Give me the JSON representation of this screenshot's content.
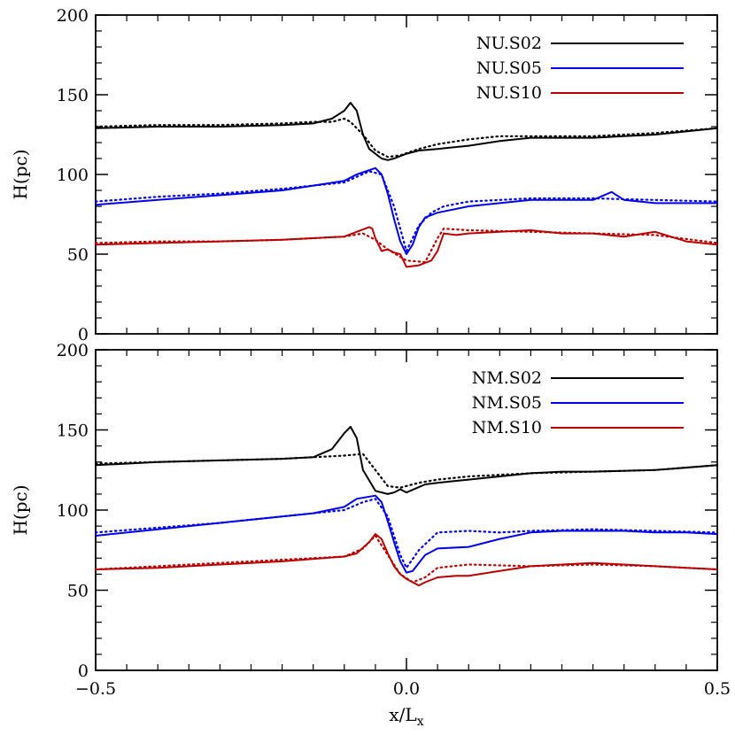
{
  "chart_data": [
    {
      "type": "line",
      "panel": "top",
      "title": "",
      "xlabel": "",
      "ylabel": "H(pc)",
      "xlim": [
        -0.5,
        0.5
      ],
      "ylim": [
        0,
        200
      ],
      "yticks": [
        0,
        50,
        100,
        150,
        200
      ],
      "xticks": [
        -0.5,
        0.0,
        0.5
      ],
      "show_x_tick_labels": false,
      "legend_position": "top-right",
      "series": [
        {
          "name": "NU.S02",
          "color": "#000000",
          "style": "solid",
          "x": [
            -0.5,
            -0.4,
            -0.3,
            -0.2,
            -0.15,
            -0.12,
            -0.1,
            -0.09,
            -0.08,
            -0.07,
            -0.06,
            -0.04,
            -0.03,
            -0.02,
            0.0,
            0.02,
            0.05,
            0.1,
            0.15,
            0.2,
            0.25,
            0.3,
            0.35,
            0.4,
            0.45,
            0.5
          ],
          "y": [
            129,
            130,
            130,
            131,
            132,
            135,
            140,
            145,
            140,
            125,
            116,
            110,
            109,
            110,
            113,
            115,
            116,
            118,
            121,
            123,
            123,
            123,
            124,
            125,
            127,
            129
          ]
        },
        {
          "name": "",
          "color": "#000000",
          "style": "dotted",
          "x": [
            -0.5,
            -0.4,
            -0.3,
            -0.2,
            -0.15,
            -0.12,
            -0.1,
            -0.09,
            -0.07,
            -0.05,
            -0.03,
            -0.01,
            0.02,
            0.05,
            0.1,
            0.15,
            0.2,
            0.3,
            0.4,
            0.5
          ],
          "y": [
            130,
            131,
            131,
            132,
            133,
            133,
            135,
            133,
            125,
            115,
            111,
            112,
            116,
            119,
            122,
            124,
            124,
            124,
            126,
            129
          ]
        },
        {
          "name": "NU.S05",
          "color": "#0000ee",
          "style": "solid",
          "x": [
            -0.5,
            -0.4,
            -0.3,
            -0.2,
            -0.15,
            -0.1,
            -0.08,
            -0.05,
            -0.04,
            -0.03,
            -0.02,
            -0.01,
            0.0,
            0.01,
            0.02,
            0.03,
            0.05,
            0.1,
            0.15,
            0.2,
            0.25,
            0.3,
            0.33,
            0.35,
            0.4,
            0.45,
            0.5
          ],
          "y": [
            81,
            84,
            87,
            90,
            93,
            96,
            100,
            104,
            100,
            88,
            72,
            58,
            50,
            56,
            67,
            73,
            76,
            80,
            82,
            84,
            84,
            84,
            89,
            84,
            82,
            82,
            82
          ]
        },
        {
          "name": "",
          "color": "#0000ee",
          "style": "dotted",
          "x": [
            -0.5,
            -0.4,
            -0.3,
            -0.2,
            -0.1,
            -0.06,
            -0.04,
            -0.02,
            0.0,
            0.02,
            0.04,
            0.06,
            0.1,
            0.2,
            0.3,
            0.4,
            0.5
          ],
          "y": [
            83,
            86,
            88,
            91,
            95,
            102,
            100,
            80,
            52,
            68,
            76,
            80,
            83,
            85,
            85,
            84,
            83
          ]
        },
        {
          "name": "NU.S10",
          "color": "#bb0000",
          "style": "solid",
          "x": [
            -0.5,
            -0.4,
            -0.3,
            -0.2,
            -0.1,
            -0.08,
            -0.06,
            -0.055,
            -0.05,
            -0.04,
            -0.03,
            -0.02,
            -0.01,
            0.0,
            0.02,
            0.04,
            0.05,
            0.06,
            0.08,
            0.1,
            0.15,
            0.2,
            0.25,
            0.3,
            0.35,
            0.4,
            0.45,
            0.5
          ],
          "y": [
            56,
            57,
            58,
            59,
            61,
            64,
            67,
            66,
            60,
            52,
            53,
            51,
            50,
            42,
            43,
            46,
            52,
            63,
            62,
            63,
            64,
            65,
            63,
            63,
            61,
            64,
            58,
            56
          ]
        },
        {
          "name": "",
          "color": "#bb0000",
          "style": "dotted",
          "x": [
            -0.5,
            -0.4,
            -0.3,
            -0.2,
            -0.1,
            -0.07,
            -0.05,
            -0.03,
            0.0,
            0.03,
            0.05,
            0.06,
            0.1,
            0.2,
            0.3,
            0.4,
            0.5
          ],
          "y": [
            57,
            58,
            58,
            59,
            61,
            63,
            59,
            53,
            46,
            45,
            60,
            66,
            65,
            64,
            63,
            62,
            57
          ]
        }
      ]
    },
    {
      "type": "line",
      "panel": "bottom",
      "title": "",
      "xlabel": "x/L",
      "xlabel_subscript": "x",
      "ylabel": "H(pc)",
      "xlim": [
        -0.5,
        0.5
      ],
      "ylim": [
        0,
        200
      ],
      "yticks": [
        0,
        50,
        100,
        150,
        200
      ],
      "xticks": [
        -0.5,
        0.0,
        0.5
      ],
      "x_tick_labels": [
        "−0.5",
        "0.0",
        "0.5"
      ],
      "legend_position": "top-right",
      "series": [
        {
          "name": "NM.S02",
          "color": "#000000",
          "style": "solid",
          "x": [
            -0.5,
            -0.4,
            -0.3,
            -0.2,
            -0.15,
            -0.12,
            -0.1,
            -0.09,
            -0.08,
            -0.07,
            -0.05,
            -0.03,
            -0.02,
            -0.01,
            0.0,
            0.03,
            0.05,
            0.1,
            0.15,
            0.2,
            0.25,
            0.3,
            0.4,
            0.5
          ],
          "y": [
            128,
            130,
            131,
            132,
            133,
            138,
            148,
            152,
            145,
            125,
            112,
            110,
            111,
            113,
            111,
            116,
            117,
            119,
            121,
            123,
            124,
            124,
            125,
            128
          ]
        },
        {
          "name": "",
          "color": "#000000",
          "style": "dotted",
          "x": [
            -0.5,
            -0.4,
            -0.3,
            -0.2,
            -0.1,
            -0.07,
            -0.05,
            -0.03,
            -0.01,
            0.02,
            0.05,
            0.1,
            0.15,
            0.2,
            0.3,
            0.4,
            0.5
          ],
          "y": [
            129,
            130,
            131,
            132,
            134,
            135,
            125,
            115,
            114,
            117,
            119,
            121,
            122,
            123,
            124,
            125,
            128
          ]
        },
        {
          "name": "NM.S05",
          "color": "#0000ee",
          "style": "solid",
          "x": [
            -0.5,
            -0.4,
            -0.3,
            -0.2,
            -0.15,
            -0.1,
            -0.08,
            -0.05,
            -0.04,
            -0.03,
            -0.02,
            -0.01,
            0.0,
            0.01,
            0.03,
            0.05,
            0.1,
            0.15,
            0.2,
            0.25,
            0.3,
            0.35,
            0.4,
            0.45,
            0.5
          ],
          "y": [
            84,
            88,
            92,
            96,
            98,
            102,
            107,
            109,
            105,
            93,
            80,
            68,
            61,
            62,
            72,
            76,
            77,
            82,
            86,
            87,
            87,
            87,
            86,
            86,
            85
          ]
        },
        {
          "name": "",
          "color": "#0000ee",
          "style": "dotted",
          "x": [
            -0.5,
            -0.4,
            -0.3,
            -0.2,
            -0.1,
            -0.07,
            -0.05,
            -0.03,
            -0.01,
            0.0,
            0.02,
            0.05,
            0.1,
            0.15,
            0.2,
            0.3,
            0.4,
            0.5
          ],
          "y": [
            86,
            89,
            92,
            96,
            100,
            105,
            107,
            96,
            72,
            64,
            75,
            86,
            87,
            86,
            87,
            88,
            87,
            86
          ]
        },
        {
          "name": "NM.S10",
          "color": "#bb0000",
          "style": "solid",
          "x": [
            -0.5,
            -0.4,
            -0.3,
            -0.2,
            -0.1,
            -0.08,
            -0.06,
            -0.05,
            -0.04,
            -0.03,
            -0.02,
            -0.01,
            0.0,
            0.01,
            0.02,
            0.03,
            0.05,
            0.08,
            0.1,
            0.15,
            0.2,
            0.25,
            0.3,
            0.35,
            0.4,
            0.45,
            0.5
          ],
          "y": [
            63,
            64,
            66,
            68,
            71,
            73,
            80,
            85,
            82,
            73,
            65,
            60,
            57,
            55,
            53,
            55,
            58,
            59,
            59,
            62,
            65,
            66,
            67,
            66,
            65,
            64,
            63
          ]
        },
        {
          "name": "",
          "color": "#bb0000",
          "style": "dotted",
          "x": [
            -0.5,
            -0.4,
            -0.3,
            -0.2,
            -0.1,
            -0.07,
            -0.05,
            -0.03,
            -0.01,
            0.01,
            0.03,
            0.05,
            0.1,
            0.2,
            0.3,
            0.4,
            0.5
          ],
          "y": [
            63,
            65,
            67,
            69,
            71,
            76,
            84,
            72,
            60,
            55,
            58,
            64,
            66,
            65,
            66,
            65,
            63
          ]
        }
      ]
    }
  ]
}
